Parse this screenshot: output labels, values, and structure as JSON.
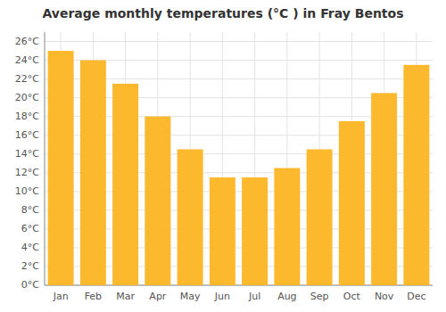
{
  "chart_data": {
    "type": "bar",
    "title": "Average monthly temperatures (°C ) in Fray Bentos",
    "categories": [
      "Jan",
      "Feb",
      "Mar",
      "Apr",
      "May",
      "Jun",
      "Jul",
      "Aug",
      "Sep",
      "Oct",
      "Nov",
      "Dec"
    ],
    "values": [
      25.0,
      24.0,
      21.5,
      18.0,
      14.5,
      11.5,
      11.5,
      12.5,
      14.5,
      17.5,
      20.5,
      23.5
    ],
    "color": "#FDB92E",
    "ylim": [
      0,
      27
    ],
    "yticks": [
      {
        "value": 0,
        "label": "0°C"
      },
      {
        "value": 2,
        "label": "2°C"
      },
      {
        "value": 4,
        "label": "4°C"
      },
      {
        "value": 6,
        "label": "6°C"
      },
      {
        "value": 8,
        "label": "8°C"
      },
      {
        "value": 10,
        "label": "10°C"
      },
      {
        "value": 12,
        "label": "12°C"
      },
      {
        "value": 14,
        "label": "14°C"
      },
      {
        "value": 16,
        "label": "16°C"
      },
      {
        "value": 18,
        "label": "18°C"
      },
      {
        "value": 20,
        "label": "20°C"
      },
      {
        "value": 22,
        "label": "22°C"
      },
      {
        "value": 24,
        "label": "24°C"
      },
      {
        "value": 26,
        "label": "26°C"
      }
    ],
    "grid": true
  }
}
